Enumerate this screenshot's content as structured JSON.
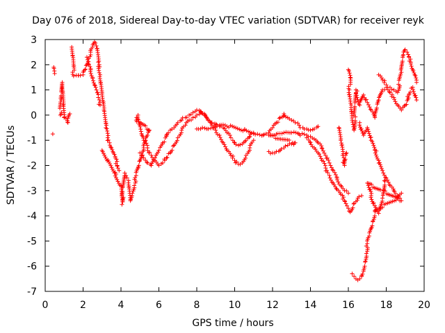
{
  "chart_data": {
    "type": "scatter",
    "title": "Day 076 of 2018, Sidereal Day-to-day VTEC variation (SDTVAR) for receiver reyk",
    "xlabel": "GPS time / hours",
    "ylabel": "SDTVAR / TECUs",
    "xlim": [
      0,
      20
    ],
    "ylim": [
      -7,
      3
    ],
    "xticks": [
      "0",
      "2",
      "4",
      "6",
      "8",
      "10",
      "12",
      "14",
      "16",
      "18",
      "20"
    ],
    "yticks": [
      "-7",
      "-6",
      "-5",
      "-4",
      "-3",
      "-2",
      "-1",
      "0",
      "1",
      "2",
      "3"
    ],
    "marker": "+",
    "color": "#ff0000",
    "series": [
      {
        "name": "SDTVAR",
        "points": [
          [
            0.4,
            -0.75
          ],
          [
            0.45,
            1.9
          ],
          [
            0.5,
            1.65
          ],
          [
            0.8,
            0.0
          ],
          [
            0.85,
            0.6
          ],
          [
            0.9,
            1.3
          ],
          [
            0.95,
            0.4
          ],
          [
            1.0,
            -0.1
          ],
          [
            1.2,
            -0.3
          ],
          [
            1.3,
            0.05
          ],
          [
            1.4,
            2.7
          ],
          [
            1.45,
            2.35
          ],
          [
            1.5,
            1.55
          ],
          [
            2.0,
            1.6
          ],
          [
            2.1,
            1.8
          ],
          [
            2.2,
            2.0
          ],
          [
            2.3,
            2.25
          ],
          [
            2.4,
            2.5
          ],
          [
            2.5,
            2.7
          ],
          [
            2.6,
            2.9
          ],
          [
            2.7,
            2.75
          ],
          [
            2.8,
            2.1
          ],
          [
            2.9,
            1.6
          ],
          [
            3.0,
            0.9
          ],
          [
            3.1,
            0.2
          ],
          [
            3.2,
            -0.5
          ],
          [
            3.3,
            -0.9
          ],
          [
            3.4,
            -1.1
          ],
          [
            3.5,
            -1.3
          ],
          [
            3.6,
            -1.5
          ],
          [
            3.7,
            -1.7
          ],
          [
            3.8,
            -2.0
          ],
          [
            3.9,
            -2.2
          ],
          [
            2.2,
            2.3
          ],
          [
            2.3,
            2.0
          ],
          [
            2.4,
            1.8
          ],
          [
            2.5,
            1.5
          ],
          [
            2.6,
            1.2
          ],
          [
            2.7,
            1.0
          ],
          [
            2.8,
            0.7
          ],
          [
            2.9,
            0.4
          ],
          [
            3.0,
            -1.4
          ],
          [
            4.0,
            -2.8
          ],
          [
            4.05,
            -3.55
          ],
          [
            4.2,
            -2.3
          ],
          [
            4.4,
            -2.6
          ],
          [
            4.5,
            -3.4
          ],
          [
            4.6,
            -3.1
          ],
          [
            4.7,
            -2.8
          ],
          [
            4.8,
            -2.4
          ],
          [
            4.9,
            -2.1
          ],
          [
            5.0,
            -1.8
          ],
          [
            5.1,
            -1.5
          ],
          [
            5.2,
            -1.3
          ],
          [
            5.3,
            -1.0
          ],
          [
            5.4,
            -0.8
          ],
          [
            5.5,
            -0.6
          ],
          [
            4.8,
            -0.2
          ],
          [
            4.9,
            0.0
          ],
          [
            5.0,
            -0.4
          ],
          [
            5.1,
            -0.8
          ],
          [
            5.2,
            -1.0
          ],
          [
            5.4,
            -1.3
          ],
          [
            5.6,
            -1.6
          ],
          [
            5.8,
            -1.8
          ],
          [
            6.0,
            -2.0
          ],
          [
            6.2,
            -1.9
          ],
          [
            6.4,
            -1.7
          ],
          [
            6.6,
            -1.5
          ],
          [
            6.8,
            -1.2
          ],
          [
            7.0,
            -0.9
          ],
          [
            7.2,
            -0.6
          ],
          [
            7.4,
            -0.4
          ],
          [
            7.6,
            -0.2
          ],
          [
            7.8,
            -0.1
          ],
          [
            8.0,
            0.0
          ],
          [
            8.2,
            0.1
          ],
          [
            8.4,
            0.05
          ],
          [
            8.6,
            -0.2
          ],
          [
            8.8,
            -0.4
          ],
          [
            9.0,
            -0.6
          ],
          [
            9.2,
            -0.8
          ],
          [
            9.4,
            -1.1
          ],
          [
            9.6,
            -1.4
          ],
          [
            9.8,
            -1.6
          ],
          [
            10.0,
            -1.8
          ],
          [
            10.2,
            -1.95
          ],
          [
            10.4,
            -1.9
          ],
          [
            10.6,
            -1.6
          ],
          [
            10.8,
            -1.3
          ],
          [
            11.0,
            -1.0
          ],
          [
            5.0,
            -1.5
          ],
          [
            5.2,
            -1.7
          ],
          [
            5.4,
            -1.9
          ],
          [
            5.6,
            -2.0
          ],
          [
            5.8,
            -1.7
          ],
          [
            6.0,
            -1.4
          ],
          [
            6.2,
            -1.1
          ],
          [
            6.4,
            -0.8
          ],
          [
            6.6,
            -0.6
          ],
          [
            6.8,
            -0.5
          ],
          [
            7.0,
            -0.3
          ],
          [
            7.2,
            -0.2
          ],
          [
            7.4,
            -0.1
          ],
          [
            7.6,
            0.0
          ],
          [
            7.8,
            0.1
          ],
          [
            8.0,
            0.2
          ],
          [
            8.2,
            0.15
          ],
          [
            8.4,
            0.0
          ],
          [
            8.6,
            -0.2
          ],
          [
            8.8,
            -0.3
          ],
          [
            9.0,
            -0.35
          ],
          [
            9.2,
            -0.4
          ],
          [
            9.4,
            -0.5
          ],
          [
            9.6,
            -0.7
          ],
          [
            9.8,
            -0.9
          ],
          [
            10.0,
            -1.1
          ],
          [
            10.2,
            -1.2
          ],
          [
            10.4,
            -1.15
          ],
          [
            10.6,
            -1.0
          ],
          [
            10.8,
            -0.85
          ],
          [
            11.0,
            -0.7
          ],
          [
            8.0,
            -0.55
          ],
          [
            8.3,
            -0.5
          ],
          [
            8.6,
            -0.55
          ],
          [
            8.9,
            -0.5
          ],
          [
            9.2,
            -0.45
          ],
          [
            9.5,
            -0.4
          ],
          [
            11.2,
            -0.75
          ],
          [
            11.5,
            -0.8
          ],
          [
            11.8,
            -0.7
          ],
          [
            12.0,
            -0.5
          ],
          [
            12.2,
            -0.3
          ],
          [
            12.4,
            -0.1
          ],
          [
            12.6,
            0.05
          ],
          [
            12.8,
            -0.1
          ],
          [
            13.0,
            -0.2
          ],
          [
            13.2,
            -0.3
          ],
          [
            13.4,
            -0.4
          ],
          [
            13.6,
            -0.5
          ],
          [
            13.8,
            -0.55
          ],
          [
            14.0,
            -0.6
          ],
          [
            14.2,
            -0.55
          ],
          [
            14.4,
            -0.45
          ],
          [
            11.8,
            -1.45
          ],
          [
            12.0,
            -1.5
          ],
          [
            12.2,
            -1.45
          ],
          [
            12.4,
            -1.4
          ],
          [
            12.6,
            -1.3
          ],
          [
            12.8,
            -1.2
          ],
          [
            13.0,
            -1.15
          ],
          [
            13.2,
            -1.1
          ],
          [
            11.8,
            -0.8
          ],
          [
            12.2,
            -0.75
          ],
          [
            12.6,
            -0.7
          ],
          [
            13.0,
            -0.7
          ],
          [
            13.4,
            -0.75
          ],
          [
            13.8,
            -0.8
          ],
          [
            14.0,
            -0.85
          ],
          [
            14.2,
            -0.95
          ],
          [
            14.4,
            -1.1
          ],
          [
            14.6,
            -1.3
          ],
          [
            14.8,
            -1.6
          ],
          [
            15.0,
            -1.9
          ],
          [
            15.2,
            -2.2
          ],
          [
            15.4,
            -2.5
          ],
          [
            15.6,
            -2.8
          ],
          [
            15.8,
            -3.0
          ],
          [
            16.0,
            -3.1
          ],
          [
            13.8,
            -0.9
          ],
          [
            14.0,
            -1.1
          ],
          [
            14.2,
            -1.3
          ],
          [
            14.4,
            -1.5
          ],
          [
            14.6,
            -1.8
          ],
          [
            14.8,
            -2.1
          ],
          [
            15.0,
            -2.4
          ],
          [
            15.2,
            -2.7
          ],
          [
            15.4,
            -2.95
          ],
          [
            15.6,
            -3.15
          ],
          [
            15.8,
            -3.4
          ],
          [
            16.0,
            -3.7
          ],
          [
            16.1,
            -3.85
          ],
          [
            16.3,
            -3.5
          ],
          [
            16.5,
            -3.3
          ],
          [
            16.7,
            -3.2
          ],
          [
            15.5,
            -0.5
          ],
          [
            15.6,
            -1.0
          ],
          [
            15.7,
            -1.6
          ],
          [
            15.8,
            -2.0
          ],
          [
            15.9,
            -1.5
          ],
          [
            16.0,
            1.8
          ],
          [
            16.1,
            1.5
          ],
          [
            16.05,
            1.0
          ],
          [
            16.15,
            0.4
          ],
          [
            16.2,
            -0.2
          ],
          [
            16.3,
            -0.6
          ],
          [
            16.4,
            1.0
          ],
          [
            16.6,
            0.4
          ],
          [
            16.8,
            0.8
          ],
          [
            17.0,
            0.5
          ],
          [
            17.2,
            0.2
          ],
          [
            17.4,
            -0.1
          ],
          [
            17.6,
            0.6
          ],
          [
            17.8,
            1.0
          ],
          [
            18.0,
            1.1
          ],
          [
            18.2,
            0.9
          ],
          [
            18.4,
            0.7
          ],
          [
            18.6,
            0.4
          ],
          [
            18.8,
            0.2
          ],
          [
            19.0,
            0.4
          ],
          [
            19.2,
            0.8
          ],
          [
            19.4,
            1.1
          ],
          [
            19.6,
            0.6
          ],
          [
            17.6,
            1.6
          ],
          [
            17.8,
            1.4
          ],
          [
            18.0,
            1.2
          ],
          [
            18.2,
            1.1
          ],
          [
            18.4,
            1.0
          ],
          [
            18.6,
            0.9
          ],
          [
            18.8,
            1.7
          ],
          [
            18.9,
            2.4
          ],
          [
            19.0,
            2.6
          ],
          [
            19.1,
            2.5
          ],
          [
            19.2,
            2.3
          ],
          [
            19.3,
            2.1
          ],
          [
            19.4,
            1.8
          ],
          [
            19.5,
            1.6
          ],
          [
            19.6,
            1.3
          ],
          [
            16.6,
            -0.3
          ],
          [
            16.8,
            -0.8
          ],
          [
            17.0,
            -0.5
          ],
          [
            17.2,
            -1.0
          ],
          [
            17.4,
            -1.4
          ],
          [
            17.6,
            -1.8
          ],
          [
            17.8,
            -2.2
          ],
          [
            18.0,
            -2.5
          ],
          [
            18.2,
            -2.8
          ],
          [
            18.4,
            -3.0
          ],
          [
            18.6,
            -3.2
          ],
          [
            18.8,
            -3.4
          ],
          [
            17.0,
            -2.7
          ],
          [
            17.2,
            -3.2
          ],
          [
            17.4,
            -3.6
          ],
          [
            17.6,
            -3.9
          ],
          [
            17.8,
            -3.3
          ],
          [
            17.9,
            -2.6
          ],
          [
            16.2,
            -6.3
          ],
          [
            16.3,
            -6.4
          ],
          [
            16.4,
            -6.5
          ],
          [
            16.5,
            -6.55
          ],
          [
            16.6,
            -6.5
          ],
          [
            16.7,
            -6.4
          ],
          [
            16.8,
            -6.2
          ],
          [
            16.9,
            -5.8
          ],
          [
            16.95,
            -5.5
          ],
          [
            17.0,
            -5.1
          ],
          [
            17.1,
            -4.8
          ],
          [
            17.2,
            -4.5
          ],
          [
            17.3,
            -4.2
          ],
          [
            17.4,
            -3.8
          ],
          [
            18.6,
            -3.3
          ],
          [
            18.8,
            -3.1
          ]
        ]
      }
    ]
  }
}
